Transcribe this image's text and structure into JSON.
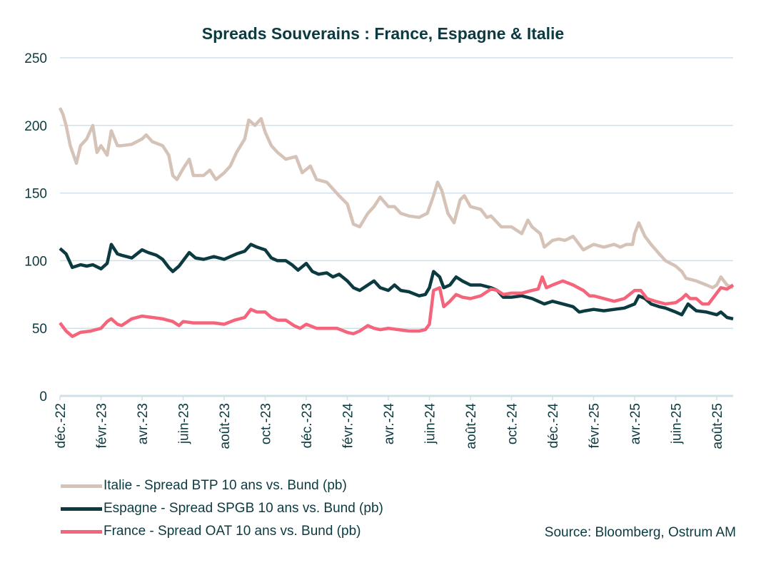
{
  "chart_data": {
    "type": "line",
    "title": "Spreads Souverains : France, Espagne & Italie",
    "xlabel": "",
    "ylabel": "",
    "ylim": [
      0,
      250
    ],
    "yticks": [
      0,
      50,
      100,
      150,
      200,
      250
    ],
    "grid": true,
    "x_unit": "months since déc. 2022",
    "xlim": [
      0,
      32.8
    ],
    "xtick_labels": [
      "déc.-22",
      "févr.-23",
      "avr.-23",
      "juin-23",
      "août-23",
      "oct.-23",
      "déc.-23",
      "févr.-24",
      "avr.-24",
      "juin-24",
      "août-24",
      "oct.-24",
      "déc.-24",
      "févr.-25",
      "avr.-25",
      "juin-25",
      "août-25"
    ],
    "legend_placement": "bottom-left",
    "series": [
      {
        "name": "Italie - Spread BTP 10 ans vs. Bund   (pb)",
        "color": "#d6c3b8",
        "points": [
          [
            0,
            213
          ],
          [
            0.15,
            208
          ],
          [
            0.3,
            200
          ],
          [
            0.5,
            185
          ],
          [
            0.8,
            172
          ],
          [
            1,
            185
          ],
          [
            1.3,
            190
          ],
          [
            1.6,
            200
          ],
          [
            1.8,
            180
          ],
          [
            2,
            185
          ],
          [
            2.3,
            178
          ],
          [
            2.5,
            196
          ],
          [
            2.8,
            185
          ],
          [
            3,
            185
          ],
          [
            3.5,
            186
          ],
          [
            4,
            190
          ],
          [
            4.2,
            193
          ],
          [
            4.5,
            188
          ],
          [
            5,
            185
          ],
          [
            5.3,
            178
          ],
          [
            5.5,
            163
          ],
          [
            5.7,
            160
          ],
          [
            6,
            168
          ],
          [
            6.3,
            175
          ],
          [
            6.5,
            163
          ],
          [
            7,
            163
          ],
          [
            7.3,
            167
          ],
          [
            7.6,
            160
          ],
          [
            8,
            165
          ],
          [
            8.3,
            170
          ],
          [
            8.6,
            180
          ],
          [
            9,
            190
          ],
          [
            9.2,
            204
          ],
          [
            9.5,
            200
          ],
          [
            9.8,
            205
          ],
          [
            10,
            195
          ],
          [
            10.3,
            185
          ],
          [
            10.6,
            180
          ],
          [
            11,
            175
          ],
          [
            11.5,
            177
          ],
          [
            11.8,
            165
          ],
          [
            12.2,
            170
          ],
          [
            12.5,
            160
          ],
          [
            13,
            158
          ],
          [
            13.3,
            153
          ],
          [
            13.6,
            148
          ],
          [
            14,
            142
          ],
          [
            14.3,
            127
          ],
          [
            14.6,
            125
          ],
          [
            15,
            135
          ],
          [
            15.3,
            140
          ],
          [
            15.6,
            147
          ],
          [
            16,
            140
          ],
          [
            16.3,
            140
          ],
          [
            16.6,
            135
          ],
          [
            17,
            133
          ],
          [
            17.5,
            132
          ],
          [
            17.9,
            135
          ],
          [
            18.2,
            148
          ],
          [
            18.4,
            158
          ],
          [
            18.6,
            152
          ],
          [
            18.9,
            135
          ],
          [
            19.2,
            128
          ],
          [
            19.5,
            145
          ],
          [
            19.7,
            148
          ],
          [
            20,
            140
          ],
          [
            20.5,
            138
          ],
          [
            20.8,
            132
          ],
          [
            21,
            133
          ],
          [
            21.5,
            125
          ],
          [
            22,
            125
          ],
          [
            22.5,
            120
          ],
          [
            22.8,
            130
          ],
          [
            23,
            125
          ],
          [
            23.4,
            120
          ],
          [
            23.6,
            110
          ],
          [
            24,
            115
          ],
          [
            24.3,
            116
          ],
          [
            24.6,
            115
          ],
          [
            25,
            118
          ],
          [
            25.3,
            112
          ],
          [
            25.5,
            108
          ],
          [
            26,
            112
          ],
          [
            26.5,
            110
          ],
          [
            27,
            112
          ],
          [
            27.3,
            110
          ],
          [
            27.6,
            112
          ],
          [
            27.9,
            112
          ],
          [
            28,
            120
          ],
          [
            28.2,
            128
          ],
          [
            28.5,
            118
          ],
          [
            28.8,
            112
          ],
          [
            29.2,
            105
          ],
          [
            29.5,
            100
          ],
          [
            30,
            96
          ],
          [
            30.3,
            92
          ],
          [
            30.5,
            87
          ],
          [
            31,
            85
          ],
          [
            31.5,
            82
          ],
          [
            31.8,
            80
          ],
          [
            32,
            82
          ],
          [
            32.2,
            88
          ],
          [
            32.5,
            82
          ],
          [
            32.8,
            80
          ]
        ]
      },
      {
        "name": "Espagne - Spread SPGB 10 ans vs. Bund   (pb)",
        "color": "#0b3a40",
        "points": [
          [
            0,
            109
          ],
          [
            0.3,
            105
          ],
          [
            0.6,
            95
          ],
          [
            1,
            97
          ],
          [
            1.3,
            96
          ],
          [
            1.6,
            97
          ],
          [
            2,
            94
          ],
          [
            2.3,
            98
          ],
          [
            2.5,
            112
          ],
          [
            2.8,
            105
          ],
          [
            3,
            104
          ],
          [
            3.5,
            102
          ],
          [
            4,
            108
          ],
          [
            4.3,
            106
          ],
          [
            4.7,
            104
          ],
          [
            5,
            101
          ],
          [
            5.3,
            95
          ],
          [
            5.5,
            92
          ],
          [
            5.8,
            96
          ],
          [
            6,
            100
          ],
          [
            6.3,
            106
          ],
          [
            6.6,
            102
          ],
          [
            7,
            101
          ],
          [
            7.5,
            103
          ],
          [
            8,
            101
          ],
          [
            8.3,
            103
          ],
          [
            8.6,
            105
          ],
          [
            9,
            107
          ],
          [
            9.3,
            112
          ],
          [
            9.6,
            110
          ],
          [
            10,
            108
          ],
          [
            10.3,
            102
          ],
          [
            10.6,
            100
          ],
          [
            11,
            100
          ],
          [
            11.3,
            97
          ],
          [
            11.6,
            93
          ],
          [
            12,
            98
          ],
          [
            12.3,
            92
          ],
          [
            12.6,
            90
          ],
          [
            13,
            91
          ],
          [
            13.3,
            88
          ],
          [
            13.6,
            90
          ],
          [
            14,
            85
          ],
          [
            14.3,
            80
          ],
          [
            14.6,
            78
          ],
          [
            15,
            82
          ],
          [
            15.3,
            85
          ],
          [
            15.6,
            80
          ],
          [
            16,
            78
          ],
          [
            16.3,
            82
          ],
          [
            16.6,
            78
          ],
          [
            17,
            77
          ],
          [
            17.5,
            74
          ],
          [
            17.8,
            75
          ],
          [
            18,
            80
          ],
          [
            18.2,
            92
          ],
          [
            18.5,
            88
          ],
          [
            18.7,
            80
          ],
          [
            19,
            82
          ],
          [
            19.3,
            88
          ],
          [
            19.6,
            85
          ],
          [
            20,
            82
          ],
          [
            20.5,
            82
          ],
          [
            21,
            80
          ],
          [
            21.3,
            78
          ],
          [
            21.6,
            73
          ],
          [
            22,
            73
          ],
          [
            22.5,
            74
          ],
          [
            23,
            72
          ],
          [
            23.3,
            70
          ],
          [
            23.6,
            68
          ],
          [
            24,
            70
          ],
          [
            24.5,
            68
          ],
          [
            25,
            66
          ],
          [
            25.3,
            62
          ],
          [
            25.6,
            63
          ],
          [
            26,
            64
          ],
          [
            26.5,
            63
          ],
          [
            27,
            64
          ],
          [
            27.5,
            65
          ],
          [
            28,
            68
          ],
          [
            28.2,
            74
          ],
          [
            28.5,
            72
          ],
          [
            28.8,
            68
          ],
          [
            29.2,
            66
          ],
          [
            29.5,
            65
          ],
          [
            30,
            62
          ],
          [
            30.3,
            60
          ],
          [
            30.6,
            68
          ],
          [
            31,
            63
          ],
          [
            31.5,
            62
          ],
          [
            32,
            60
          ],
          [
            32.2,
            62
          ],
          [
            32.5,
            58
          ],
          [
            32.8,
            57
          ]
        ]
      },
      {
        "name": "France - Spread OAT 10 ans vs. Bund   (pb)",
        "color": "#f4647a",
        "points": [
          [
            0,
            54
          ],
          [
            0.3,
            48
          ],
          [
            0.6,
            44
          ],
          [
            1,
            47
          ],
          [
            1.5,
            48
          ],
          [
            2,
            50
          ],
          [
            2.3,
            55
          ],
          [
            2.5,
            57
          ],
          [
            2.8,
            53
          ],
          [
            3,
            52
          ],
          [
            3.5,
            57
          ],
          [
            4,
            59
          ],
          [
            4.5,
            58
          ],
          [
            5,
            57
          ],
          [
            5.5,
            55
          ],
          [
            5.8,
            52
          ],
          [
            6,
            55
          ],
          [
            6.5,
            54
          ],
          [
            7,
            54
          ],
          [
            7.5,
            54
          ],
          [
            8,
            53
          ],
          [
            8.5,
            56
          ],
          [
            9,
            58
          ],
          [
            9.3,
            64
          ],
          [
            9.6,
            62
          ],
          [
            10,
            62
          ],
          [
            10.3,
            58
          ],
          [
            10.6,
            56
          ],
          [
            11,
            56
          ],
          [
            11.4,
            52
          ],
          [
            11.7,
            50
          ],
          [
            12,
            53
          ],
          [
            12.5,
            50
          ],
          [
            13,
            50
          ],
          [
            13.5,
            50
          ],
          [
            14,
            47
          ],
          [
            14.3,
            46
          ],
          [
            14.6,
            48
          ],
          [
            15,
            52
          ],
          [
            15.3,
            50
          ],
          [
            15.6,
            49
          ],
          [
            16,
            50
          ],
          [
            16.5,
            49
          ],
          [
            17,
            48
          ],
          [
            17.5,
            48
          ],
          [
            17.8,
            49
          ],
          [
            18,
            53
          ],
          [
            18.2,
            78
          ],
          [
            18.5,
            80
          ],
          [
            18.7,
            66
          ],
          [
            19,
            70
          ],
          [
            19.3,
            75
          ],
          [
            19.6,
            73
          ],
          [
            20,
            72
          ],
          [
            20.5,
            74
          ],
          [
            21,
            79
          ],
          [
            21.3,
            78
          ],
          [
            21.6,
            75
          ],
          [
            22,
            76
          ],
          [
            22.5,
            76
          ],
          [
            23,
            78
          ],
          [
            23.3,
            79
          ],
          [
            23.5,
            88
          ],
          [
            23.7,
            80
          ],
          [
            24,
            82
          ],
          [
            24.5,
            85
          ],
          [
            25,
            82
          ],
          [
            25.5,
            78
          ],
          [
            25.8,
            74
          ],
          [
            26,
            74
          ],
          [
            26.5,
            72
          ],
          [
            27,
            70
          ],
          [
            27.5,
            72
          ],
          [
            28,
            78
          ],
          [
            28.3,
            78
          ],
          [
            28.6,
            72
          ],
          [
            29,
            70
          ],
          [
            29.5,
            68
          ],
          [
            30,
            69
          ],
          [
            30.3,
            72
          ],
          [
            30.5,
            75
          ],
          [
            30.7,
            72
          ],
          [
            31,
            72
          ],
          [
            31.3,
            68
          ],
          [
            31.6,
            68
          ],
          [
            32,
            76
          ],
          [
            32.2,
            80
          ],
          [
            32.5,
            79
          ],
          [
            32.8,
            82
          ]
        ]
      }
    ],
    "source": "Source: Bloomberg, Ostrum AM"
  }
}
